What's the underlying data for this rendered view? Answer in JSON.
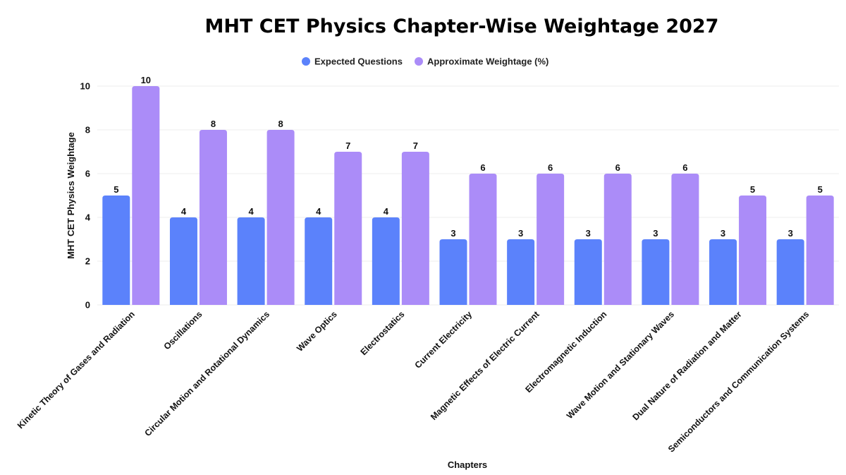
{
  "chart_data": {
    "type": "bar",
    "title": "MHT CET Physics Chapter-Wise Weightage 2027",
    "xlabel": "Chapters",
    "ylabel": "MHT CET Physics Weightage",
    "ylim": [
      0,
      10
    ],
    "yticks": [
      0,
      2,
      4,
      6,
      8,
      10
    ],
    "grid": true,
    "legend_position": "top-center",
    "categories": [
      "Kinetic Theory of Gases and Radiation",
      "Oscillations",
      "Circular Motion and Rotational Dynamics",
      "Wave Optics",
      "Electrostatics",
      "Current Electricity",
      "Magnetic Effects of Electric Current",
      "Electromagnetic Induction",
      "Wave Motion and Stationary Waves",
      "Dual Nature of Radiation and Matter",
      "Semiconductors and Communication Systems"
    ],
    "series": [
      {
        "name": "Expected Questions",
        "color": "#5b82fb",
        "values": [
          5,
          4,
          4,
          4,
          4,
          3,
          3,
          3,
          3,
          3,
          3
        ]
      },
      {
        "name": "Approximate Weightage (%)",
        "color": "#ab8cf8",
        "values": [
          10,
          8,
          8,
          7,
          7,
          6,
          6,
          6,
          6,
          5,
          5
        ]
      }
    ]
  }
}
